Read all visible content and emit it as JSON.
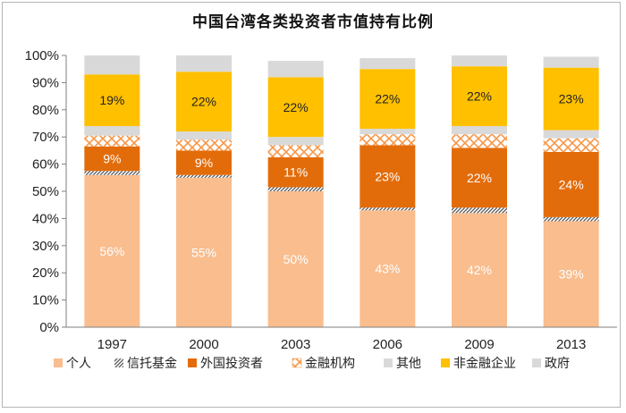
{
  "chart_data": {
    "type": "bar",
    "stacked": true,
    "percent": true,
    "title": "中国台湾各类投资者市值持有比例",
    "categories": [
      "1997",
      "2000",
      "2003",
      "2006",
      "2009",
      "2013"
    ],
    "ylim": [
      0,
      100
    ],
    "yticks": [
      "0%",
      "10%",
      "20%",
      "30%",
      "40%",
      "50%",
      "60%",
      "70%",
      "80%",
      "90%",
      "100%"
    ],
    "legend_position": "bottom",
    "series": [
      {
        "name": "个人",
        "color": "#f9bd8e",
        "pattern": "solid",
        "values": [
          56,
          55,
          50,
          43,
          42,
          39
        ],
        "labels": [
          "56%",
          "55%",
          "50%",
          "43%",
          "42%",
          "39%"
        ]
      },
      {
        "name": "信托基金",
        "color": "#7f7f7f",
        "pattern": "diagonal",
        "values": [
          1.5,
          1,
          1.5,
          1,
          2,
          1.5
        ]
      },
      {
        "name": "外国投资者",
        "color": "#e36c0a",
        "pattern": "solid",
        "values": [
          9,
          9,
          11,
          23,
          22,
          24
        ],
        "labels": [
          "9%",
          "9%",
          "11%",
          "23%",
          "22%",
          "24%"
        ]
      },
      {
        "name": "金融机构",
        "color": "#f79646",
        "pattern": "cross",
        "values": [
          4,
          4,
          4.5,
          4,
          5,
          5
        ]
      },
      {
        "name": "其他",
        "color": "#d9d9d9",
        "pattern": "solid",
        "values": [
          3.5,
          3,
          3,
          2,
          3,
          3
        ]
      },
      {
        "name": "非金融企业",
        "color": "#ffc000",
        "pattern": "solid",
        "values": [
          19,
          22,
          22,
          22,
          22,
          23
        ],
        "labels": [
          "19%",
          "22%",
          "22%",
          "22%",
          "22%",
          "23%"
        ]
      },
      {
        "name": "政府",
        "color": "#d9d9d9",
        "pattern": "solid",
        "values": [
          7,
          6,
          6,
          4,
          4,
          4
        ]
      }
    ]
  }
}
